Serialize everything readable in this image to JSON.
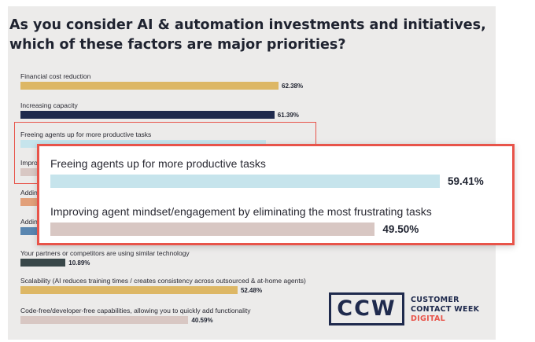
{
  "colors": {
    "gold": "#ddb765",
    "navy": "#1f2a4d",
    "light_blue": "#c6e4ec",
    "taupe": "#d8c7c3",
    "orange": "#e2a07a",
    "steel_blue": "#5a86b0",
    "dark_slate": "#394749",
    "highlight": "#e8544a"
  },
  "chart_data": {
    "type": "bar",
    "orientation": "horizontal",
    "title": "As you consider AI & automation investments and initiatives, which of these factors are major priorities?",
    "title_lines": [
      "As you consider AI & automation investments and initiatives,",
      "which of these factors are major priorities?"
    ],
    "xlim": [
      0,
      100
    ],
    "grid": false,
    "value_labels": true,
    "categories": [
      "Financial cost reduction",
      "Increasing capacity",
      "Freeing agents up for more productive tasks",
      "Impro",
      "Addin",
      "Addin",
      "Your partners or competitors are using similar technology",
      "Scalability (AI reduces training times / creates consistency across outsourced & at-home agents)",
      "Code-free/developer-free capabilities, allowing you to quickly add functionality"
    ],
    "values": [
      62.38,
      61.39,
      59.41,
      49.5,
      null,
      null,
      10.89,
      52.48,
      40.59
    ],
    "value_labels_text": [
      "62.38%",
      "61.39%",
      "",
      "",
      "",
      "",
      "10.89%",
      "52.48%",
      "40.59%"
    ],
    "bar_colors": [
      "#ddb765",
      "#1f2a4d",
      "#c6e4ec",
      "#d8c7c3",
      "#e2a07a",
      "#5a86b0",
      "#394749",
      "#ddb765",
      "#d8c7c3"
    ],
    "zoom_callout": {
      "categories": [
        "Freeing agents up for more productive tasks",
        "Improving agent mindset/engagement by eliminating the most frustrating tasks"
      ],
      "values": [
        59.41,
        49.5
      ],
      "value_labels_text": [
        "59.41%",
        "49.50%"
      ],
      "bar_colors": [
        "#c6e4ec",
        "#d8c7c3"
      ]
    }
  },
  "logo": {
    "mark": "CCW",
    "lines": [
      "CUSTOMER",
      "CONTACT WEEK",
      "DIGITAL"
    ],
    "line_colors": [
      "#1f2a4d",
      "#1f2a4d",
      "#e8544a"
    ]
  }
}
